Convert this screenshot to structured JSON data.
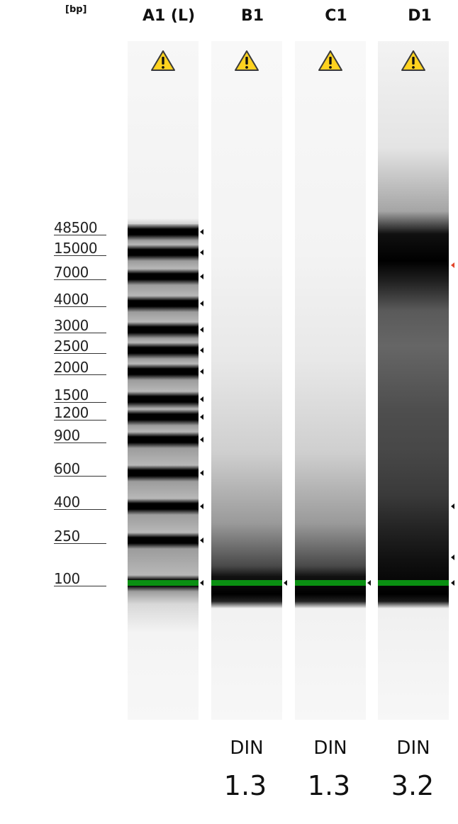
{
  "chart_data": {
    "type": "gel",
    "unit_label": "[bp]",
    "ladder_sizes": [
      "48500",
      "15000",
      "7000",
      "4000",
      "3000",
      "2500",
      "2000",
      "1500",
      "1200",
      "900",
      "600",
      "400",
      "250",
      "100"
    ],
    "lanes": [
      {
        "id": "A1 (L)",
        "warning": true,
        "din_label": "",
        "din": ""
      },
      {
        "id": "B1",
        "warning": true,
        "din_label": "DIN",
        "din": "1.3"
      },
      {
        "id": "C1",
        "warning": true,
        "din_label": "DIN",
        "din": "1.3"
      },
      {
        "id": "D1",
        "warning": true,
        "din_label": "DIN",
        "din": "3.2"
      }
    ],
    "lower_marker_bp": "100",
    "peak_arrows": {
      "B1": [
        "100"
      ],
      "C1": [
        "100"
      ],
      "D1": [
        "7000",
        "400",
        "150",
        "100"
      ]
    },
    "highlight_arrow": {
      "lane": "D1",
      "bp": "7000",
      "color": "#e2452a"
    },
    "colors": {
      "marker_band": "#0a8f12",
      "warning_fill": "#ffd21f",
      "band": "#000000"
    }
  }
}
